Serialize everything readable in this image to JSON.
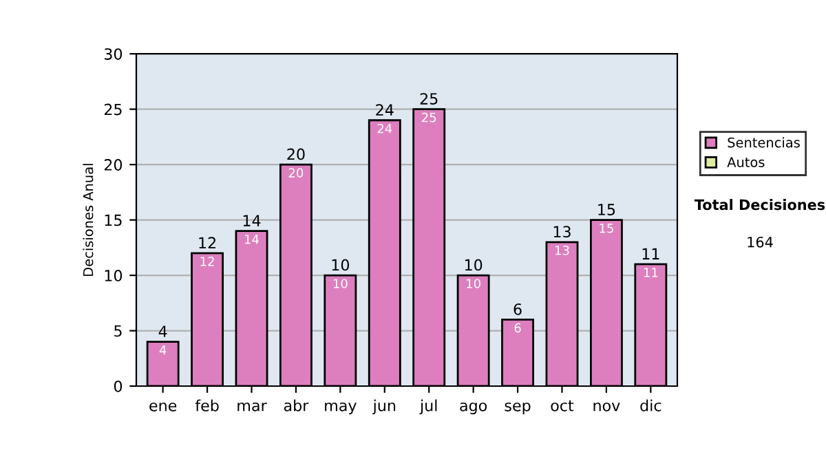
{
  "chart_data": {
    "type": "bar",
    "ylabel": "Decisiones Anual",
    "categories": [
      "ene",
      "feb",
      "mar",
      "abr",
      "may",
      "jun",
      "jul",
      "ago",
      "sep",
      "oct",
      "nov",
      "dic"
    ],
    "stacked": true,
    "series": [
      {
        "name": "Sentencias",
        "color": "#dd7fbe",
        "values": [
          4,
          12,
          14,
          20,
          10,
          24,
          25,
          10,
          6,
          13,
          15,
          11
        ],
        "value_labels": [
          "4",
          "12",
          "14",
          "20",
          "10",
          "24",
          "25",
          "10",
          "6",
          "13",
          "15",
          "11"
        ]
      },
      {
        "name": "Autos",
        "color": "#ddeea0",
        "values": [
          0,
          0,
          0,
          0,
          0,
          0,
          0,
          0,
          0,
          0,
          0,
          0
        ]
      }
    ],
    "totals": [
      "4",
      "12",
      "14",
      "20",
      "10",
      "24",
      "25",
      "10",
      "6",
      "13",
      "15",
      "11"
    ],
    "ylim": [
      0,
      30
    ],
    "yticks": [
      0,
      5,
      10,
      15,
      20,
      25,
      30
    ],
    "grid": "y",
    "legend": "right",
    "annotations": [
      "Total Decisiones",
      "164"
    ]
  }
}
